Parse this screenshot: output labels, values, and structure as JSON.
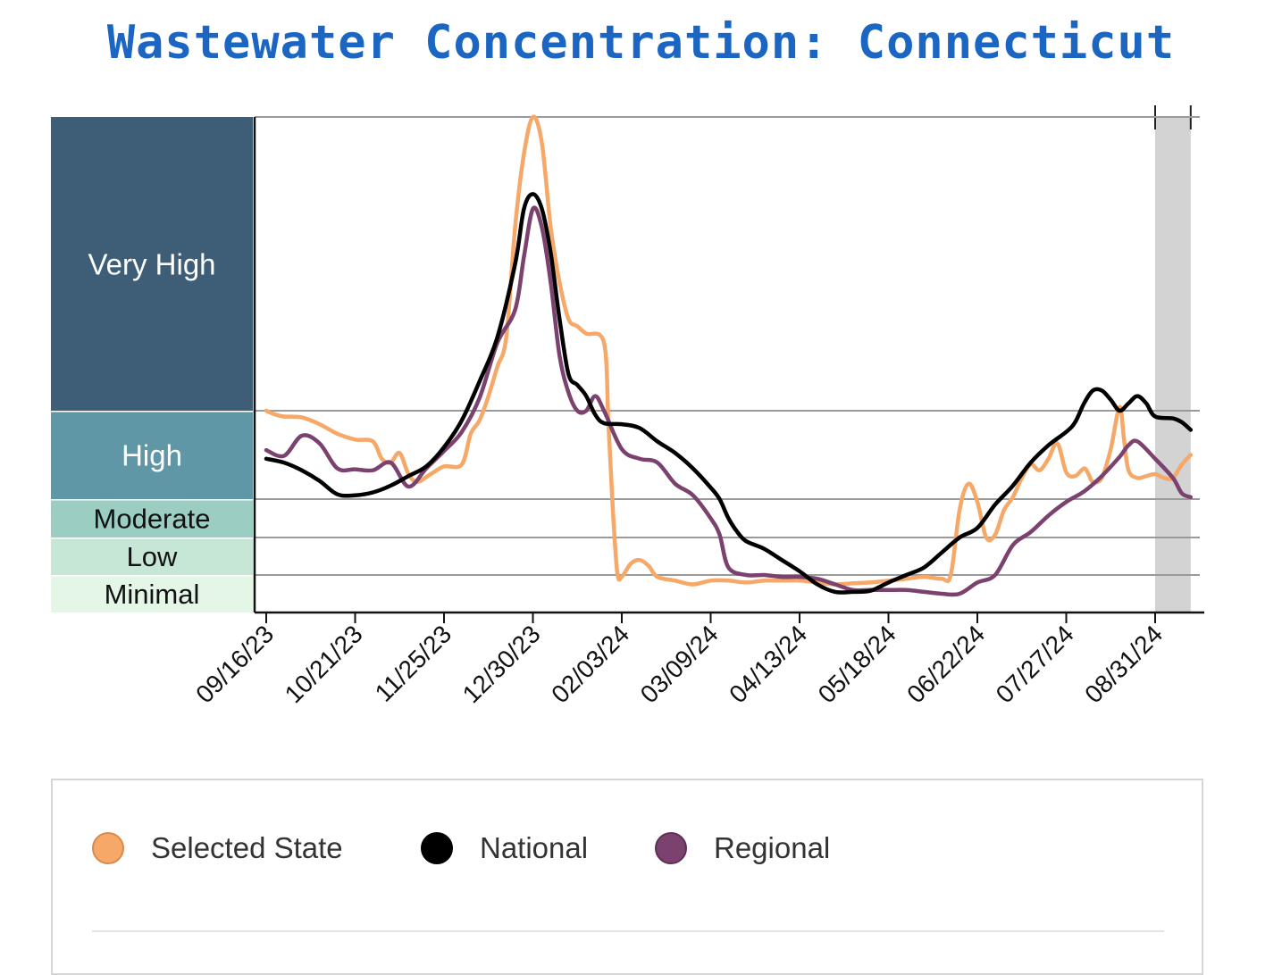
{
  "title": "Wastewater Concentration: Connecticut",
  "chart_data": {
    "type": "line",
    "levels": [
      {
        "name": "Very High",
        "color": "#3e5e78",
        "text_color": "#ffffff",
        "from": 8.0,
        "to": 16.0
      },
      {
        "name": "High",
        "color": "#5f97a6",
        "text_color": "#ffffff",
        "from": 3.4,
        "to": 8.0
      },
      {
        "name": "Moderate",
        "color": "#9bcdc3",
        "text_color": "#111111",
        "from": 2.0,
        "to": 3.4
      },
      {
        "name": "Low",
        "color": "#c6e6d6",
        "text_color": "#111111",
        "from": 1.0,
        "to": 2.0
      },
      {
        "name": "Minimal",
        "color": "#e4f6e6",
        "text_color": "#111111",
        "from": 0.0,
        "to": 1.0
      }
    ],
    "x_ticks": [
      "09/16/23",
      "10/21/23",
      "11/25/23",
      "12/30/23",
      "02/03/24",
      "03/09/24",
      "04/13/24",
      "05/18/24",
      "06/22/24",
      "07/27/24",
      "08/31/24"
    ],
    "x_range": [
      -0.15,
      10.4
    ],
    "provisional_range": [
      10.0,
      10.4
    ],
    "series": [
      {
        "name": "Selected State",
        "color": "#f5a867",
        "points": [
          [
            0.0,
            8.0
          ],
          [
            0.1,
            7.8
          ],
          [
            0.2,
            7.7
          ],
          [
            0.4,
            7.65
          ],
          [
            0.6,
            7.3
          ],
          [
            0.8,
            6.8
          ],
          [
            1.0,
            6.5
          ],
          [
            1.2,
            6.4
          ],
          [
            1.3,
            5.5
          ],
          [
            1.4,
            5.3
          ],
          [
            1.5,
            5.8
          ],
          [
            1.6,
            4.7
          ],
          [
            1.7,
            4.3
          ],
          [
            1.85,
            4.7
          ],
          [
            2.0,
            5.1
          ],
          [
            2.2,
            5.2
          ],
          [
            2.3,
            6.8
          ],
          [
            2.4,
            7.5
          ],
          [
            2.5,
            8.4
          ],
          [
            2.6,
            9.2
          ],
          [
            2.7,
            10.0
          ],
          [
            2.8,
            13.0
          ],
          [
            2.9,
            15.0
          ],
          [
            3.0,
            16.0
          ],
          [
            3.1,
            15.3
          ],
          [
            3.2,
            13.0
          ],
          [
            3.3,
            11.5
          ],
          [
            3.4,
            10.5
          ],
          [
            3.5,
            10.3
          ],
          [
            3.6,
            10.1
          ],
          [
            3.8,
            9.85
          ],
          [
            3.85,
            7.3
          ],
          [
            3.9,
            3.0
          ],
          [
            3.95,
            1.05
          ],
          [
            4.0,
            0.95
          ],
          [
            4.1,
            1.3
          ],
          [
            4.2,
            1.4
          ],
          [
            4.3,
            1.25
          ],
          [
            4.4,
            0.95
          ],
          [
            4.6,
            0.85
          ],
          [
            4.8,
            0.75
          ],
          [
            5.0,
            0.85
          ],
          [
            5.2,
            0.85
          ],
          [
            5.4,
            0.8
          ],
          [
            5.6,
            0.85
          ],
          [
            5.8,
            0.85
          ],
          [
            6.0,
            0.85
          ],
          [
            6.2,
            0.8
          ],
          [
            6.4,
            0.75
          ],
          [
            6.6,
            0.78
          ],
          [
            6.8,
            0.8
          ],
          [
            7.0,
            0.85
          ],
          [
            7.2,
            0.9
          ],
          [
            7.4,
            0.95
          ],
          [
            7.6,
            0.9
          ],
          [
            7.7,
            1.0
          ],
          [
            7.8,
            3.0
          ],
          [
            7.9,
            4.2
          ],
          [
            8.0,
            3.3
          ],
          [
            8.1,
            2.0
          ],
          [
            8.2,
            2.1
          ],
          [
            8.3,
            3.0
          ],
          [
            8.4,
            3.5
          ],
          [
            8.5,
            4.5
          ],
          [
            8.6,
            5.2
          ],
          [
            8.7,
            4.9
          ],
          [
            8.8,
            5.5
          ],
          [
            8.9,
            6.3
          ],
          [
            9.0,
            4.8
          ],
          [
            9.1,
            4.6
          ],
          [
            9.2,
            5.0
          ],
          [
            9.25,
            4.7
          ],
          [
            9.3,
            4.3
          ],
          [
            9.4,
            4.5
          ],
          [
            9.5,
            6.0
          ],
          [
            9.6,
            8.1
          ],
          [
            9.65,
            6.5
          ],
          [
            9.7,
            4.9
          ],
          [
            9.8,
            4.5
          ],
          [
            9.9,
            4.6
          ],
          [
            10.0,
            4.7
          ],
          [
            10.1,
            4.5
          ],
          [
            10.2,
            4.5
          ],
          [
            10.3,
            5.2
          ],
          [
            10.4,
            5.7
          ]
        ]
      },
      {
        "name": "National",
        "color": "#000000",
        "points": [
          [
            0.0,
            5.5
          ],
          [
            0.2,
            5.3
          ],
          [
            0.4,
            4.9
          ],
          [
            0.6,
            4.35
          ],
          [
            0.8,
            3.65
          ],
          [
            1.0,
            3.6
          ],
          [
            1.2,
            3.75
          ],
          [
            1.4,
            4.1
          ],
          [
            1.6,
            4.6
          ],
          [
            1.8,
            5.1
          ],
          [
            2.0,
            6.1
          ],
          [
            2.2,
            7.5
          ],
          [
            2.4,
            8.8
          ],
          [
            2.6,
            10.0
          ],
          [
            2.8,
            12.0
          ],
          [
            2.9,
            13.5
          ],
          [
            3.0,
            13.9
          ],
          [
            3.1,
            13.5
          ],
          [
            3.2,
            12.3
          ],
          [
            3.3,
            10.5
          ],
          [
            3.4,
            9.0
          ],
          [
            3.5,
            8.7
          ],
          [
            3.6,
            8.4
          ],
          [
            3.7,
            7.8
          ],
          [
            3.8,
            7.35
          ],
          [
            4.0,
            7.3
          ],
          [
            4.2,
            7.1
          ],
          [
            4.4,
            6.4
          ],
          [
            4.6,
            5.8
          ],
          [
            4.8,
            5.0
          ],
          [
            5.0,
            4.0
          ],
          [
            5.1,
            3.4
          ],
          [
            5.2,
            2.7
          ],
          [
            5.3,
            2.2
          ],
          [
            5.4,
            1.9
          ],
          [
            5.6,
            1.7
          ],
          [
            5.8,
            1.4
          ],
          [
            6.0,
            1.1
          ],
          [
            6.2,
            0.75
          ],
          [
            6.4,
            0.55
          ],
          [
            6.6,
            0.55
          ],
          [
            6.8,
            0.58
          ],
          [
            7.0,
            0.8
          ],
          [
            7.2,
            1.0
          ],
          [
            7.4,
            1.2
          ],
          [
            7.6,
            1.6
          ],
          [
            7.8,
            2.0
          ],
          [
            8.0,
            2.35
          ],
          [
            8.2,
            3.2
          ],
          [
            8.4,
            4.1
          ],
          [
            8.6,
            5.3
          ],
          [
            8.8,
            6.2
          ],
          [
            9.0,
            6.9
          ],
          [
            9.1,
            7.4
          ],
          [
            9.2,
            8.2
          ],
          [
            9.3,
            8.55
          ],
          [
            9.4,
            8.55
          ],
          [
            9.5,
            8.3
          ],
          [
            9.6,
            8.0
          ],
          [
            9.7,
            8.2
          ],
          [
            9.8,
            8.4
          ],
          [
            9.9,
            8.2
          ],
          [
            10.0,
            7.7
          ],
          [
            10.2,
            7.6
          ],
          [
            10.3,
            7.4
          ],
          [
            10.4,
            7.0
          ]
        ]
      },
      {
        "name": "Regional",
        "color": "#7b426f",
        "points": [
          [
            0.0,
            5.95
          ],
          [
            0.2,
            5.65
          ],
          [
            0.4,
            6.7
          ],
          [
            0.6,
            6.3
          ],
          [
            0.8,
            5.0
          ],
          [
            1.0,
            4.95
          ],
          [
            1.2,
            4.9
          ],
          [
            1.4,
            5.3
          ],
          [
            1.6,
            4.05
          ],
          [
            1.8,
            5.0
          ],
          [
            2.0,
            5.9
          ],
          [
            2.2,
            6.9
          ],
          [
            2.4,
            8.35
          ],
          [
            2.6,
            9.85
          ],
          [
            2.8,
            10.75
          ],
          [
            2.9,
            12.2
          ],
          [
            3.0,
            13.5
          ],
          [
            3.1,
            13.0
          ],
          [
            3.2,
            11.5
          ],
          [
            3.3,
            9.5
          ],
          [
            3.4,
            8.5
          ],
          [
            3.5,
            8.0
          ],
          [
            3.6,
            8.0
          ],
          [
            3.7,
            8.4
          ],
          [
            3.8,
            8.0
          ],
          [
            4.0,
            6.0
          ],
          [
            4.2,
            5.5
          ],
          [
            4.4,
            5.3
          ],
          [
            4.6,
            4.2
          ],
          [
            4.8,
            3.6
          ],
          [
            5.0,
            2.7
          ],
          [
            5.1,
            2.1
          ],
          [
            5.2,
            1.2
          ],
          [
            5.4,
            1.0
          ],
          [
            5.6,
            1.0
          ],
          [
            5.8,
            0.95
          ],
          [
            6.0,
            0.95
          ],
          [
            6.2,
            0.9
          ],
          [
            6.4,
            0.75
          ],
          [
            6.6,
            0.6
          ],
          [
            6.8,
            0.6
          ],
          [
            7.0,
            0.6
          ],
          [
            7.2,
            0.6
          ],
          [
            7.4,
            0.55
          ],
          [
            7.6,
            0.5
          ],
          [
            7.8,
            0.5
          ],
          [
            8.0,
            0.8
          ],
          [
            8.2,
            1.0
          ],
          [
            8.4,
            1.8
          ],
          [
            8.6,
            2.2
          ],
          [
            8.8,
            2.8
          ],
          [
            9.0,
            3.3
          ],
          [
            9.2,
            3.8
          ],
          [
            9.4,
            4.6
          ],
          [
            9.6,
            5.6
          ],
          [
            9.7,
            6.2
          ],
          [
            9.8,
            6.4
          ],
          [
            10.0,
            5.5
          ],
          [
            10.2,
            4.5
          ],
          [
            10.3,
            3.7
          ],
          [
            10.4,
            3.5
          ]
        ]
      }
    ]
  },
  "legend": [
    {
      "label": "Selected State",
      "color": "#f5a867",
      "border": "#d9894a"
    },
    {
      "label": "National",
      "color": "#000000",
      "border": "#000000"
    },
    {
      "label": "Regional",
      "color": "#7b426f",
      "border": "#5e2f54"
    }
  ]
}
